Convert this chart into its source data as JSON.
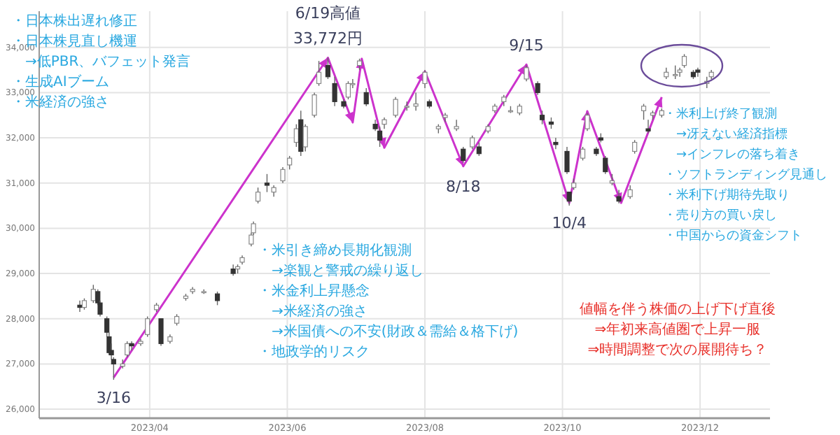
{
  "chart_data": {
    "type": "candlestick",
    "x": [
      "2023-03-01",
      "2023-03-03",
      "2023-03-07",
      "2023-03-09",
      "2023-03-10",
      "2023-03-13",
      "2023-03-14",
      "2023-03-15",
      "2023-03-16",
      "2023-03-20",
      "2023-03-22",
      "2023-03-24",
      "2023-03-28",
      "2023-03-31",
      "2023-04-04",
      "2023-04-06",
      "2023-04-10",
      "2023-04-13",
      "2023-04-17",
      "2023-04-20",
      "2023-04-25",
      "2023-05-01",
      "2023-05-08",
      "2023-05-10",
      "2023-05-12",
      "2023-05-16",
      "2023-05-17",
      "2023-05-19",
      "2023-05-23",
      "2023-05-26",
      "2023-05-30",
      "2023-06-02",
      "2023-06-05",
      "2023-06-07",
      "2023-06-09",
      "2023-06-13",
      "2023-06-15",
      "2023-06-19",
      "2023-06-22",
      "2023-06-26",
      "2023-06-28",
      "2023-06-30",
      "2023-07-03",
      "2023-07-06",
      "2023-07-10",
      "2023-07-12",
      "2023-07-14",
      "2023-07-19",
      "2023-07-24",
      "2023-07-28",
      "2023-08-01",
      "2023-08-03",
      "2023-08-07",
      "2023-08-10",
      "2023-08-15",
      "2023-08-18",
      "2023-08-22",
      "2023-08-25",
      "2023-08-29",
      "2023-09-01",
      "2023-09-05",
      "2023-09-08",
      "2023-09-12",
      "2023-09-15",
      "2023-09-20",
      "2023-09-22",
      "2023-09-26",
      "2023-09-28",
      "2023-10-03",
      "2023-10-04",
      "2023-10-06",
      "2023-10-10",
      "2023-10-12",
      "2023-10-16",
      "2023-10-18",
      "2023-10-20",
      "2023-10-23",
      "2023-10-26",
      "2023-10-31",
      "2023-11-02",
      "2023-11-06",
      "2023-11-08",
      "2023-11-10",
      "2023-11-14",
      "2023-11-16",
      "2023-11-20",
      "2023-11-22",
      "2023-11-24",
      "2023-11-28",
      "2023-11-30",
      "2023-12-04",
      "2023-12-06"
    ],
    "ohlc": [
      [
        28300,
        28400,
        28150,
        28250
      ],
      [
        28250,
        28450,
        28200,
        28400
      ],
      [
        28400,
        28750,
        28350,
        28650
      ],
      [
        28600,
        28650,
        28300,
        28350
      ],
      [
        28350,
        28400,
        28050,
        28100
      ],
      [
        28000,
        28050,
        27600,
        27700
      ],
      [
        27600,
        27700,
        27200,
        27250
      ],
      [
        27300,
        27450,
        27100,
        27200
      ],
      [
        27100,
        27150,
        26650,
        27000
      ],
      [
        26950,
        27100,
        26900,
        27000
      ],
      [
        27200,
        27500,
        27150,
        27450
      ],
      [
        27450,
        27500,
        27300,
        27400
      ],
      [
        27450,
        27550,
        27400,
        27500
      ],
      [
        27650,
        28050,
        27600,
        28000
      ],
      [
        28200,
        28350,
        28150,
        28300
      ],
      [
        28000,
        28000,
        27400,
        27450
      ],
      [
        27500,
        27650,
        27450,
        27600
      ],
      [
        27900,
        28100,
        27850,
        28050
      ],
      [
        28450,
        28550,
        28400,
        28500
      ],
      [
        28600,
        28700,
        28550,
        28650
      ],
      [
        28600,
        28650,
        28550,
        28600
      ],
      [
        28550,
        28600,
        28300,
        28400
      ],
      [
        29100,
        29200,
        28950,
        29000
      ],
      [
        29100,
        29200,
        29000,
        29150
      ],
      [
        29250,
        29400,
        29200,
        29350
      ],
      [
        29650,
        29900,
        29600,
        29850
      ],
      [
        29900,
        30150,
        29850,
        30100
      ],
      [
        30600,
        30900,
        30550,
        30800
      ],
      [
        31000,
        31200,
        30800,
        30950
      ],
      [
        30800,
        30950,
        30700,
        30900
      ],
      [
        31050,
        31350,
        31000,
        31300
      ],
      [
        31400,
        31600,
        31300,
        31550
      ],
      [
        31900,
        32300,
        31800,
        32200
      ],
      [
        32400,
        32600,
        31600,
        31700
      ],
      [
        31800,
        32300,
        31700,
        32250
      ],
      [
        32500,
        33000,
        32450,
        32950
      ],
      [
        33200,
        33700,
        33150,
        33450
      ],
      [
        33600,
        33772,
        33300,
        33350
      ],
      [
        33200,
        33350,
        32700,
        32800
      ],
      [
        32800,
        32850,
        32650,
        32700
      ],
      [
        32900,
        33250,
        32850,
        33200
      ],
      [
        33200,
        33300,
        33100,
        33200
      ],
      [
        33600,
        33750,
        33500,
        33700
      ],
      [
        33000,
        33100,
        32700,
        32750
      ],
      [
        32300,
        32400,
        32150,
        32200
      ],
      [
        32150,
        32250,
        31800,
        31950
      ],
      [
        32300,
        32450,
        32200,
        32400
      ],
      [
        32500,
        32900,
        32450,
        32850
      ],
      [
        32700,
        32800,
        32600,
        32700
      ],
      [
        32700,
        33000,
        32600,
        32750
      ],
      [
        33200,
        33500,
        33100,
        33450
      ],
      [
        32800,
        32850,
        32650,
        32700
      ],
      [
        32200,
        32300,
        32100,
        32250
      ],
      [
        32450,
        32550,
        32350,
        32500
      ],
      [
        32200,
        32400,
        32150,
        32250
      ],
      [
        31750,
        31800,
        31450,
        31500
      ],
      [
        31800,
        32050,
        31750,
        32000
      ],
      [
        31800,
        31900,
        31600,
        31650
      ],
      [
        32150,
        32300,
        32100,
        32250
      ],
      [
        32600,
        32750,
        32550,
        32700
      ],
      [
        32800,
        32950,
        32700,
        32900
      ],
      [
        32600,
        32700,
        32550,
        32600
      ],
      [
        32550,
        32750,
        32500,
        32700
      ],
      [
        33300,
        33600,
        33250,
        33550
      ],
      [
        33200,
        33250,
        32950,
        33000
      ],
      [
        32500,
        32600,
        32300,
        32400
      ],
      [
        32350,
        32450,
        32200,
        32300
      ],
      [
        31900,
        32000,
        31750,
        31850
      ],
      [
        31700,
        31800,
        31200,
        31250
      ],
      [
        30800,
        30800,
        30500,
        30600
      ],
      [
        30900,
        31100,
        30850,
        31000
      ],
      [
        31550,
        31800,
        31500,
        31750
      ],
      [
        32200,
        32550,
        32150,
        32500
      ],
      [
        31750,
        31800,
        31600,
        31650
      ],
      [
        32000,
        32100,
        31900,
        31950
      ],
      [
        31550,
        31600,
        31200,
        31250
      ],
      [
        31000,
        31200,
        30950,
        31050
      ],
      [
        30700,
        30850,
        30550,
        30600
      ],
      [
        30700,
        30950,
        30650,
        30850
      ],
      [
        31700,
        31950,
        31650,
        31900
      ],
      [
        32600,
        32750,
        32400,
        32700
      ],
      [
        32200,
        32400,
        32100,
        32150
      ],
      [
        32500,
        32600,
        32400,
        32550
      ],
      [
        32500,
        32650,
        32450,
        32600
      ],
      [
        33350,
        33550,
        33300,
        33450
      ],
      [
        33400,
        33600,
        33300,
        33400
      ],
      [
        33450,
        33550,
        33350,
        33500
      ],
      [
        33600,
        33850,
        33550,
        33800
      ],
      [
        33450,
        33500,
        33300,
        33350
      ],
      [
        33500,
        33550,
        33350,
        33450
      ],
      [
        33200,
        33350,
        33100,
        33250
      ],
      [
        33350,
        33500,
        33300,
        33450
      ]
    ],
    "series": [
      {
        "type": "line",
        "color": "#cc33cc",
        "x": [
          "2023-03-16",
          "2023-06-19",
          "2023-06-30",
          "2023-07-04",
          "2023-07-14",
          "2023-08-01",
          "2023-08-18",
          "2023-09-15",
          "2023-10-04",
          "2023-10-12",
          "2023-10-27",
          "2023-11-14"
        ],
        "values": [
          26700,
          33772,
          32340,
          33750,
          31780,
          33470,
          31370,
          33620,
          30560,
          32590,
          30560,
          32900
        ]
      }
    ],
    "marker": "none",
    "line_style": "solid",
    "grid": true,
    "xlim": [
      "2023-02-11",
      "2024-01-01"
    ],
    "xticks": [
      {
        "value": "2023-04-01",
        "label": "2023/04"
      },
      {
        "value": "2023-06-01",
        "label": "2023/06"
      },
      {
        "value": "2023-08-01",
        "label": "2023/08"
      },
      {
        "value": "2023-10-01",
        "label": "2023/10"
      },
      {
        "value": "2023-12-01",
        "label": "2023/12"
      }
    ],
    "ylim": [
      25800,
      34800
    ],
    "yticks": [
      {
        "value": 26000,
        "label": "26,000"
      },
      {
        "value": 27000,
        "label": "27,000"
      },
      {
        "value": 28000,
        "label": "28,000"
      },
      {
        "value": 29000,
        "label": "29,000"
      },
      {
        "value": 30000,
        "label": "30,000"
      },
      {
        "value": 31000,
        "label": "31,000"
      },
      {
        "value": 32000,
        "label": "32,000"
      },
      {
        "value": 33000,
        "label": "33,000"
      },
      {
        "value": 34000,
        "label": "34,000"
      }
    ],
    "annotations": [
      {
        "text": "3/16",
        "x": "2023-03-16",
        "y": 26700
      },
      {
        "text": "6/19高値",
        "x": "2023-06-19",
        "y": 33772
      },
      {
        "text": "33,772円",
        "x": "2023-06-19",
        "y": 33772
      },
      {
        "text": "8/18",
        "x": "2023-08-18",
        "y": 31370
      },
      {
        "text": "9/15",
        "x": "2023-09-15",
        "y": 33620
      },
      {
        "text": "10/4",
        "x": "2023-10-04",
        "y": 30560
      },
      "・日本株出遅れ修正",
      "・日本株見直し機運",
      "　→低PBR、バフェット発言",
      "・生成AIブーム",
      "・米経済の強さ",
      "・米引き締め長期化観測",
      "　→楽観と警戒の繰り返し",
      "・米金利上昇懸念",
      "　→米経済の強さ",
      "　→米国債への不安(財政＆需給＆格下げ)",
      "・地政学的リスク",
      "・米利上げ終了観測",
      "　→冴えない経済指標",
      "　→インフレの落ち着き",
      "・ソフトランディング見通し",
      "・米利下げ期待先取り",
      "・売り方の買い戻し",
      "・中国からの資金シフト",
      "値幅を伴う株価の上げ下げ直後",
      "⇒年初来高値圏で上昇一服",
      "⇒時間調整で次の展開待ち？"
    ]
  }
}
